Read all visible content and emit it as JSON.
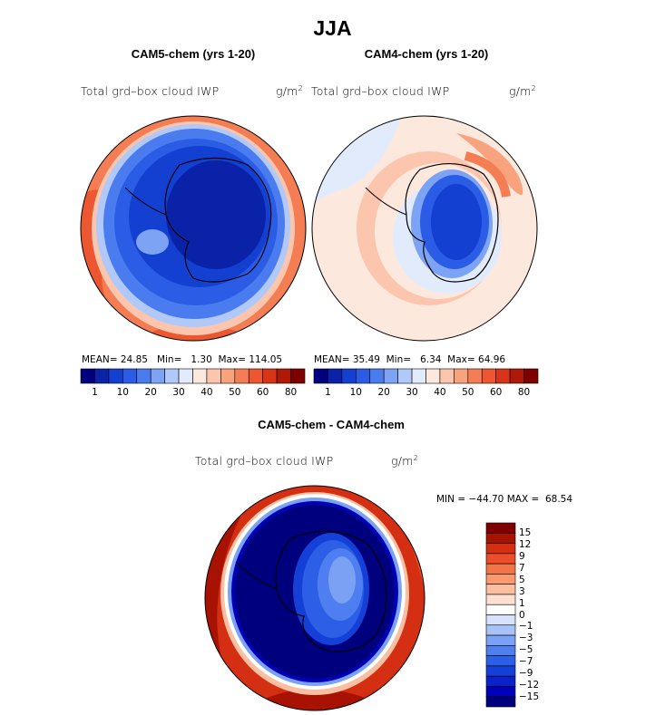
{
  "figure": {
    "title": "JJA"
  },
  "panels": [
    {
      "id": "left",
      "title": "CAM5-chem (yrs 1-20)",
      "variable": "Total grd–box cloud IWP",
      "units": "g/m",
      "units_exp": "2",
      "stats": {
        "mean_label": "MEAN=",
        "mean": "24.85",
        "min_label": "Min=",
        "min": "1.30",
        "max_label": "Max=",
        "max": "114.05"
      }
    },
    {
      "id": "right",
      "title": "CAM4-chem (yrs 1-20)",
      "variable": "Total grd–box cloud IWP",
      "units": "g/m",
      "units_exp": "2",
      "stats": {
        "mean_label": "MEAN=",
        "mean": "35.49",
        "min_label": "Min=",
        "min": "6.34",
        "max_label": "Max=",
        "max": "64.96"
      }
    },
    {
      "id": "diff",
      "title": "CAM5-chem - CAM4-chem",
      "variable": "Total grd–box cloud IWP",
      "units": "g/m",
      "units_exp": "2",
      "stats": {
        "min_label": "MIN =",
        "min": "−44.70",
        "max_label": "MAX =",
        "max": "68.54"
      }
    }
  ],
  "colorbar_abs": {
    "colors": [
      "#00007f",
      "#0a22a8",
      "#1440d2",
      "#2a5ce6",
      "#4a7cef",
      "#7da3f4",
      "#b1c9f8",
      "#e2ebfc",
      "#fde8de",
      "#fcc6ae",
      "#f9a27e",
      "#f47d54",
      "#ec5630",
      "#d73418",
      "#b01808",
      "#7f0000"
    ],
    "tick_labels": [
      "1",
      "10",
      "20",
      "30",
      "40",
      "50",
      "60",
      "80"
    ]
  },
  "colorbar_diff": {
    "colors": [
      "#00007f",
      "#0000b8",
      "#0a22cc",
      "#1440d8",
      "#2d5ee6",
      "#4e7eef",
      "#7aa1f4",
      "#a9c3f8",
      "#d6e3fb",
      "#ffffff",
      "#fde0d2",
      "#fbbea0",
      "#f89a72",
      "#f4744a",
      "#eb4e28",
      "#d42f12",
      "#a81202",
      "#7f0000"
    ],
    "tick_labels": [
      "15",
      "12",
      "9",
      "7",
      "5",
      "3",
      "1",
      "0",
      "−1",
      "−3",
      "−5",
      "−7",
      "−9",
      "−12",
      "−15"
    ]
  }
}
